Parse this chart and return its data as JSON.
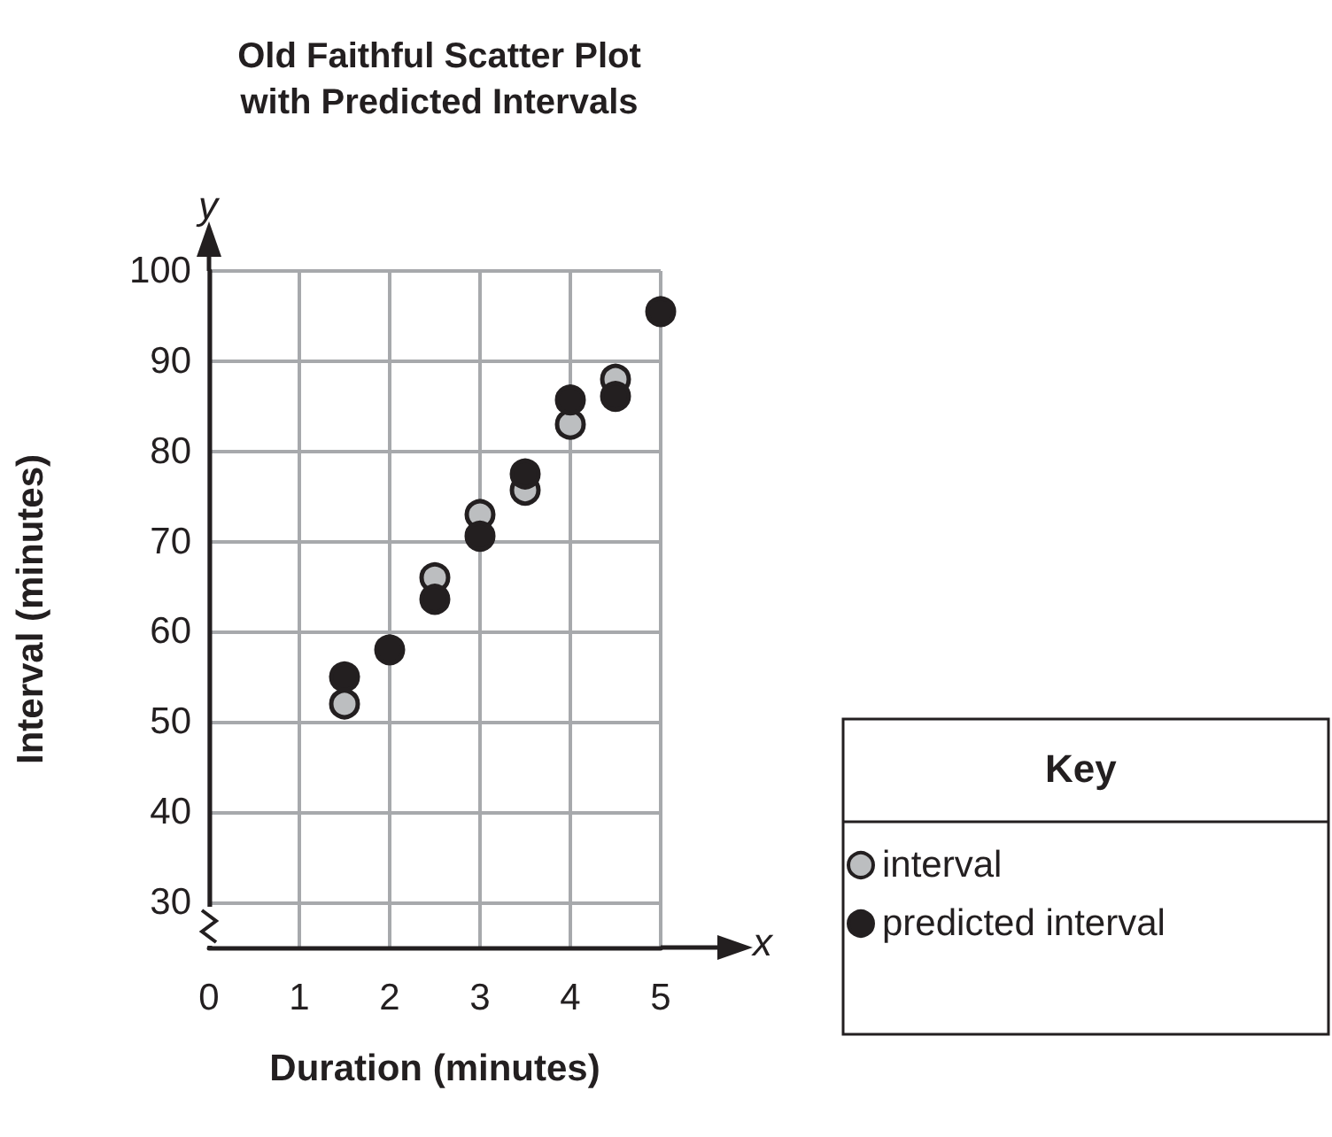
{
  "chart_data": {
    "type": "scatter",
    "title": "Old Faithful Scatter Plot\nwith Predicted Intervals",
    "xlabel": "Duration (minutes)",
    "ylabel": "Interval (minutes)",
    "legend_title": "Key",
    "annotations": [
      "x",
      "y"
    ],
    "series": [
      {
        "name": "interval",
        "color": "#bcbec0",
        "x": [
          1.5,
          2,
          2.5,
          3,
          3.5,
          4,
          4.5
        ],
        "values": [
          52,
          null,
          66,
          73,
          75.7,
          83,
          88
        ]
      },
      {
        "name": "predicted interval",
        "color": "#231f20",
        "x": [
          1.5,
          2,
          2.5,
          3,
          3.5,
          4,
          4.5,
          5
        ],
        "values": [
          55,
          58,
          63.6,
          70.6,
          77.5,
          85.7,
          86.1,
          95.5
        ]
      }
    ],
    "xlim": [
      0,
      5
    ],
    "xticks": [
      0,
      1,
      2,
      3,
      4,
      5
    ],
    "ylim": [
      25,
      100
    ],
    "yticks": [
      30,
      40,
      50,
      60,
      70,
      80,
      90,
      100
    ],
    "grid": true,
    "legend": "right",
    "marker": "circle"
  }
}
